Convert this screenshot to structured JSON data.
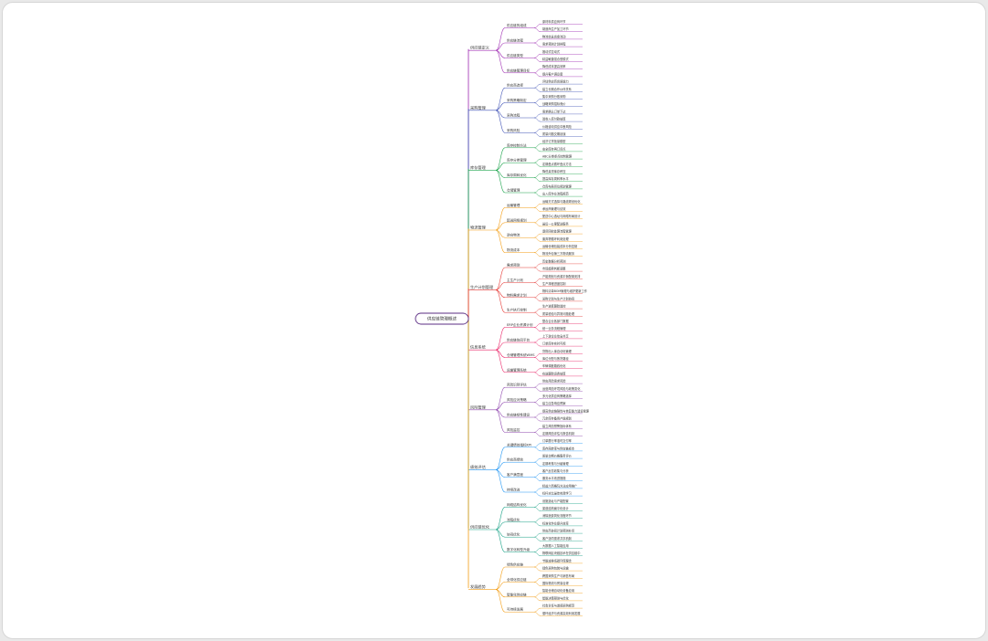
{
  "mindmap": {
    "root": "供应链管理概述",
    "branches": [
      {
        "label": "供应链定义",
        "color": "#9c27b0",
        "children": [
          {
            "label": "供应链的组成",
            "leaves": [
              "原材料供应商环节",
              "制造商生产加工环节"
            ]
          },
          {
            "label": "供应链流程",
            "leaves": [
              "物流信息资金流动",
              "需求预测计划排程"
            ]
          },
          {
            "label": "供应链类型",
            "leaves": [
              "推动式拉动式",
              "精益敏捷混合型模式"
            ]
          },
          {
            "label": "供应链管理目标",
            "leaves": [
              "降低成本提高效率",
              "提升客户满意度"
            ]
          }
        ]
      },
      {
        "label": "采购管理",
        "color": "#3f51b5",
        "children": [
          {
            "label": "供应商选择",
            "leaves": [
              "评估供应商资质能力",
              "建立长期合作伙伴关系"
            ]
          },
          {
            "label": "采购策略制定",
            "leaves": [
              "集中采购分散采购",
              "战略采购招标竞价"
            ]
          },
          {
            "label": "采购流程",
            "leaves": [
              "需求确认订单下达",
              "验收入库付款结算"
            ]
          },
          {
            "label": "采购风险",
            "leaves": [
              "价格波动供应中断风险",
              "质量问题交期延误"
            ]
          }
        ]
      },
      {
        "label": "库存管理",
        "color": "#1aa34a",
        "children": [
          {
            "label": "库存控制方法",
            "leaves": [
              "经济订货批量模型",
              "安全库存再订货点"
            ]
          },
          {
            "label": "库存分类管理",
            "leaves": [
              "ABC分类重点控制管理",
              "定期盘点循环盘点方法"
            ]
          },
          {
            "label": "库存周转优化",
            "leaves": [
              "降低呆滞库存积压",
              "提高库存周转率水平"
            ]
          },
          {
            "label": "仓储管理",
            "leaves": [
              "仓库布局货位规划管理",
              "出入库作业流程规范"
            ]
          }
        ]
      },
      {
        "label": "物流管理",
        "color": "#f39c12",
        "children": [
          {
            "label": "运输管理",
            "leaves": [
              "运输方式选择与路线规划优化",
              "承运商管理与绩效"
            ]
          },
          {
            "label": "配送网络规划",
            "leaves": [
              "配送中心选址与网络布局设计",
              "最后一公里配送服务"
            ]
          },
          {
            "label": "逆向物流",
            "leaves": [
              "退货回收处理流程管理",
              "废弃物循环利用处理"
            ]
          },
          {
            "label": "物流成本",
            "leaves": [
              "运输仓储包装成本分析控制",
              "物流外包第三方物流服务"
            ]
          }
        ]
      },
      {
        "label": "生产计划管理",
        "color": "#e53935",
        "children": [
          {
            "label": "需求预测",
            "leaves": [
              "历史数据分析预测",
              "市场趋势判断调整"
            ]
          },
          {
            "label": "主生产计划",
            "leaves": [
              "产能规划与资源平衡配置安排",
              "生产排程进度控制"
            ]
          },
          {
            "label": "物料需求计划",
            "leaves": [
              "物料清单BOM管理与维护更新工作",
              "采购计划与生产计划协同"
            ]
          },
          {
            "label": "生产执行控制",
            "leaves": [
              "生产进度跟踪监控",
              "质量检验与异常问题处理"
            ]
          }
        ]
      },
      {
        "label": "信息系统",
        "color": "#e91e63",
        "children": [
          {
            "label": "ERP企业资源计划",
            "leaves": [
              "整合企业各部门数据",
              "统一业务流程管理"
            ]
          },
          {
            "label": "供应链协同平台",
            "leaves": [
              "上下游企业信息共享",
              "订单库存实时可视"
            ]
          },
          {
            "label": "仓储管理系统WMS",
            "leaves": [
              "货物出入库自动化管理",
              "库位分配与拣货路径"
            ]
          },
          {
            "label": "运输管理系统",
            "leaves": [
              "车辆调度路线优化",
              "在途跟踪运费结算"
            ]
          }
        ]
      },
      {
        "label": "风险管理",
        "color": "#8e44ad",
        "children": [
          {
            "label": "风险识别评估",
            "leaves": [
              "供应风险需求风险",
              "运营风险环境风险与政策变化"
            ]
          },
          {
            "label": "风险应对策略",
            "leaves": [
              "多元化供应商策略选择",
              "建立应急响应预案"
            ]
          },
          {
            "label": "供应链韧性建设",
            "leaves": [
              "提高供应链弹性与恢复能力建设管理",
              "冗余库存备用产能规划"
            ]
          },
          {
            "label": "风险监控",
            "leaves": [
              "建立风险预警指标体系",
              "定期风险评估与报告机制"
            ]
          }
        ]
      },
      {
        "label": "绩效评估",
        "color": "#2196f3",
        "children": [
          {
            "label": "关键绩效指标KPI",
            "leaves": [
              "订单履行率准时交付率",
              "库存周转率与供应链成本"
            ]
          },
          {
            "label": "供应商绩效",
            "leaves": [
              "质量交期价格服务评价",
              "定期考核与分级管理"
            ]
          },
          {
            "label": "客户满意度",
            "leaves": [
              "客户反馈收集与分析",
              "服务水平改进措施"
            ]
          },
          {
            "label": "持续改进",
            "leaves": [
              "精益六西格玛方法应用推广",
              "标杆对比最佳实践学习"
            ]
          }
        ]
      },
      {
        "label": "供应链优化",
        "color": "#16a085",
        "children": [
          {
            "label": "网络结构优化",
            "leaves": [
              "设施选址与产能配置",
              "渠道结构扁平化设计"
            ]
          },
          {
            "label": "流程优化",
            "leaves": [
              "消除浪费简化流程环节",
              "标准化作业提升效率"
            ]
          },
          {
            "label": "协同优化",
            "leaves": [
              "供应商协同计划预测补货",
              "客户协同需求共享机制"
            ]
          },
          {
            "label": "数字化转型升级",
            "leaves": [
              "大数据人工智能应用",
              "物联网区块链技术在供应链中"
            ]
          }
        ]
      },
      {
        "label": "发展趋势",
        "color": "#f39c12",
        "children": [
          {
            "label": "绿色供应链",
            "leaves": [
              "节能减排低碳环保理念",
              "绿色采购包装与运输"
            ]
          },
          {
            "label": "全球化供应链",
            "leaves": [
              "跨国采购生产与销售布局",
              "国际物流与贸易合规"
            ]
          },
          {
            "label": "智能化供应链",
            "leaves": [
              "智能仓储自动化设备应用",
              "智能决策预测与优化"
            ]
          },
          {
            "label": "可持续发展",
            "leaves": [
              "社会责任与道德采购规范",
              "循环经济与资源高效利用发展"
            ]
          }
        ]
      }
    ]
  }
}
